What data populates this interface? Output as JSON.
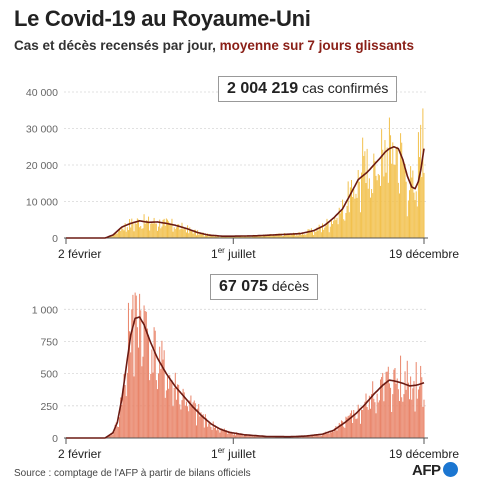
{
  "header": {
    "title": "Le Covid-19 au Royaume-Uni",
    "subtitle_main": "Cas et décès recensés par jour,",
    "subtitle_accent": "moyenne sur 7 jours glissants"
  },
  "footer": {
    "source": "Source : comptage de l'AFP à partir de bilans officiels",
    "logo_text": "AFP"
  },
  "colors": {
    "cases_bar": "#f2c14e",
    "deaths_bar": "#e9856a",
    "avg_line": "#6b1a12",
    "axis": "#555555",
    "grid": "#d8d8d8",
    "logo_dot": "#1b76d1"
  },
  "chart_data": [
    {
      "type": "bar",
      "name": "cases",
      "callout_value": "2 004 219",
      "callout_label": "cas confirmés",
      "x_labels": [
        {
          "t": 0,
          "label": "2 février"
        },
        {
          "t": 150,
          "label": "1",
          "sup": "er",
          "rest": " juillet"
        },
        {
          "t": 321,
          "label": "19 décembre"
        }
      ],
      "ylim": [
        0,
        40000
      ],
      "yticks": [
        0,
        10000,
        20000,
        30000,
        40000
      ],
      "ytick_labels": [
        "0",
        "10 000",
        "20 000",
        "30 000",
        "40 000"
      ],
      "days_total": 321,
      "avg_keypoints": [
        [
          0,
          0
        ],
        [
          35,
          0
        ],
        [
          42,
          800
        ],
        [
          50,
          3000
        ],
        [
          58,
          4000
        ],
        [
          66,
          4700
        ],
        [
          74,
          4300
        ],
        [
          82,
          4400
        ],
        [
          90,
          4000
        ],
        [
          98,
          3500
        ],
        [
          108,
          2600
        ],
        [
          118,
          1500
        ],
        [
          128,
          800
        ],
        [
          140,
          500
        ],
        [
          150,
          500
        ],
        [
          170,
          600
        ],
        [
          190,
          900
        ],
        [
          210,
          1200
        ],
        [
          222,
          2000
        ],
        [
          232,
          3500
        ],
        [
          240,
          5500
        ],
        [
          248,
          8000
        ],
        [
          256,
          12500
        ],
        [
          262,
          16000
        ],
        [
          270,
          18000
        ],
        [
          276,
          20000
        ],
        [
          282,
          22000
        ],
        [
          286,
          23500
        ],
        [
          290,
          24500
        ],
        [
          294,
          25000
        ],
        [
          298,
          24500
        ],
        [
          302,
          21500
        ],
        [
          306,
          17000
        ],
        [
          310,
          14000
        ],
        [
          313,
          13500
        ],
        [
          316,
          15500
        ],
        [
          318,
          18500
        ],
        [
          320,
          22500
        ],
        [
          321,
          24500
        ]
      ],
      "bar_noise": 0.45,
      "bar_spikes": [
        [
          266,
          27500
        ],
        [
          290,
          33000
        ],
        [
          316,
          29000
        ],
        [
          320,
          35500
        ],
        [
          318,
          31000
        ]
      ]
    },
    {
      "type": "bar",
      "name": "deaths",
      "callout_value": "67 075",
      "callout_label": "décès",
      "x_labels": [
        {
          "t": 0,
          "label": "2 février"
        },
        {
          "t": 150,
          "label": "1",
          "sup": "er",
          "rest": " juillet"
        },
        {
          "t": 321,
          "label": "19 décembre"
        }
      ],
      "ylim": [
        0,
        1150
      ],
      "yticks": [
        0,
        250,
        500,
        750,
        1000
      ],
      "ytick_labels": [
        "0",
        "250",
        "500",
        "750",
        "1 000"
      ],
      "days_total": 321,
      "avg_keypoints": [
        [
          0,
          0
        ],
        [
          35,
          0
        ],
        [
          42,
          40
        ],
        [
          46,
          120
        ],
        [
          50,
          300
        ],
        [
          54,
          550
        ],
        [
          58,
          800
        ],
        [
          62,
          930
        ],
        [
          66,
          940
        ],
        [
          70,
          880
        ],
        [
          76,
          740
        ],
        [
          82,
          620
        ],
        [
          90,
          500
        ],
        [
          98,
          400
        ],
        [
          106,
          320
        ],
        [
          114,
          240
        ],
        [
          122,
          170
        ],
        [
          130,
          110
        ],
        [
          138,
          70
        ],
        [
          146,
          45
        ],
        [
          160,
          25
        ],
        [
          180,
          12
        ],
        [
          200,
          10
        ],
        [
          215,
          15
        ],
        [
          230,
          30
        ],
        [
          240,
          60
        ],
        [
          250,
          120
        ],
        [
          260,
          190
        ],
        [
          268,
          260
        ],
        [
          276,
          340
        ],
        [
          284,
          410
        ],
        [
          290,
          450
        ],
        [
          296,
          440
        ],
        [
          302,
          425
        ],
        [
          308,
          405
        ],
        [
          314,
          410
        ],
        [
          318,
          420
        ],
        [
          321,
          430
        ]
      ],
      "bar_noise": 0.35,
      "bar_spikes": [
        [
          56,
          1050
        ],
        [
          62,
          1130
        ],
        [
          66,
          1120
        ],
        [
          70,
          1030
        ],
        [
          300,
          640
        ],
        [
          306,
          600
        ],
        [
          314,
          590
        ],
        [
          318,
          560
        ]
      ]
    }
  ]
}
